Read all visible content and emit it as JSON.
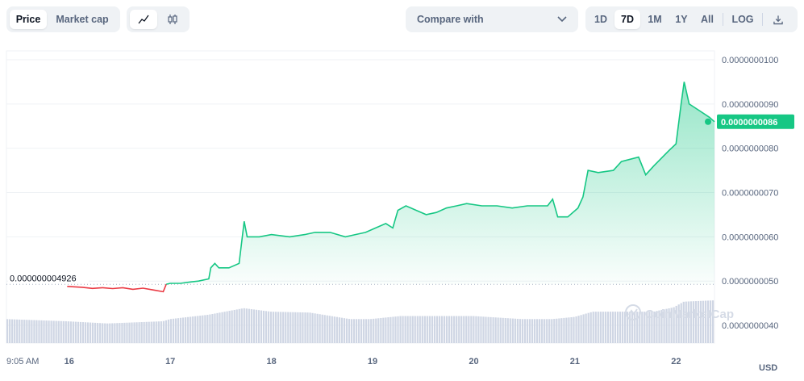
{
  "toolbar": {
    "metric_tabs": [
      {
        "label": "Price",
        "active": true
      },
      {
        "label": "Market cap",
        "active": false
      }
    ],
    "chart_type_icons": [
      {
        "icon": "line-chart-icon",
        "active": true
      },
      {
        "icon": "candlestick-icon",
        "active": false
      }
    ],
    "compare_label": "Compare with",
    "ranges": [
      {
        "label": "1D",
        "active": false
      },
      {
        "label": "7D",
        "active": true
      },
      {
        "label": "1M",
        "active": false
      },
      {
        "label": "1Y",
        "active": false
      },
      {
        "label": "All",
        "active": false
      }
    ],
    "log_label": "LOG",
    "download_icon": "download-icon"
  },
  "colors": {
    "up": "#16c784",
    "down": "#ea3943",
    "volume": "#cfd6e4",
    "grid": "#eff2f5"
  },
  "watermark": "CoinMarketCap",
  "currency_label": "USD",
  "chart_data": {
    "type": "line",
    "ylim": [
      3.6e-09,
      1.02e-08
    ],
    "y_ticks": [
      {
        "value": 4e-09,
        "label": "0.0000000040"
      },
      {
        "value": 5e-09,
        "label": "0.0000000050"
      },
      {
        "value": 6e-09,
        "label": "0.0000000060"
      },
      {
        "value": 7e-09,
        "label": "0.0000000070"
      },
      {
        "value": 8e-09,
        "label": "0.0000000080"
      },
      {
        "value": 9e-09,
        "label": "0.0000000090"
      },
      {
        "value": 1e-08,
        "label": "0.0000000100"
      }
    ],
    "x_ticks": [
      {
        "value": 0,
        "label": "9:05 AM"
      },
      {
        "value": 0.62,
        "label": "16"
      },
      {
        "value": 1.62,
        "label": "17"
      },
      {
        "value": 2.62,
        "label": "18"
      },
      {
        "value": 3.62,
        "label": "19"
      },
      {
        "value": 4.62,
        "label": "20"
      },
      {
        "value": 5.62,
        "label": "21"
      },
      {
        "value": 6.62,
        "label": "22"
      }
    ],
    "xlim": [
      0,
      7
    ],
    "baseline": {
      "value": 4.926e-09,
      "label": "0.000000004926"
    },
    "current": {
      "value": 8.6e-09,
      "label": "0.0000000086"
    },
    "price": [
      [
        0.6,
        4.88e-09
      ],
      [
        0.75,
        4.86e-09
      ],
      [
        0.85,
        4.835e-09
      ],
      [
        0.95,
        4.85e-09
      ],
      [
        1.05,
        4.83e-09
      ],
      [
        1.15,
        4.85e-09
      ],
      [
        1.25,
        4.815e-09
      ],
      [
        1.35,
        4.84e-09
      ],
      [
        1.45,
        4.8e-09
      ],
      [
        1.55,
        4.76e-09
      ],
      [
        1.58,
        4.93e-09
      ],
      [
        1.62,
        4.95e-09
      ],
      [
        1.72,
        4.95e-09
      ],
      [
        1.82,
        4.98e-09
      ],
      [
        1.9,
        5e-09
      ],
      [
        2.0,
        5.05e-09
      ],
      [
        2.02,
        5.3e-09
      ],
      [
        2.06,
        5.4e-09
      ],
      [
        2.1,
        5.3e-09
      ],
      [
        2.2,
        5.3e-09
      ],
      [
        2.3,
        5.4e-09
      ],
      [
        2.35,
        6.35e-09
      ],
      [
        2.38,
        6e-09
      ],
      [
        2.5,
        6e-09
      ],
      [
        2.62,
        6.05e-09
      ],
      [
        2.8,
        6e-09
      ],
      [
        2.95,
        6.05e-09
      ],
      [
        3.05,
        6.1e-09
      ],
      [
        3.2,
        6.1e-09
      ],
      [
        3.35,
        6e-09
      ],
      [
        3.45,
        6.05e-09
      ],
      [
        3.55,
        6.1e-09
      ],
      [
        3.65,
        6.2e-09
      ],
      [
        3.75,
        6.3e-09
      ],
      [
        3.82,
        6.2e-09
      ],
      [
        3.87,
        6.6e-09
      ],
      [
        3.95,
        6.7e-09
      ],
      [
        4.05,
        6.6e-09
      ],
      [
        4.15,
        6.5e-09
      ],
      [
        4.25,
        6.55e-09
      ],
      [
        4.35,
        6.65e-09
      ],
      [
        4.45,
        6.7e-09
      ],
      [
        4.55,
        6.75e-09
      ],
      [
        4.7,
        6.7e-09
      ],
      [
        4.85,
        6.7e-09
      ],
      [
        5.0,
        6.65e-09
      ],
      [
        5.15,
        6.7e-09
      ],
      [
        5.35,
        6.7e-09
      ],
      [
        5.4,
        6.85e-09
      ],
      [
        5.45,
        6.45e-09
      ],
      [
        5.55,
        6.45e-09
      ],
      [
        5.65,
        6.65e-09
      ],
      [
        5.7,
        6.9e-09
      ],
      [
        5.75,
        7.5e-09
      ],
      [
        5.85,
        7.45e-09
      ],
      [
        6.0,
        7.5e-09
      ],
      [
        6.08,
        7.7e-09
      ],
      [
        6.25,
        7.8e-09
      ],
      [
        6.32,
        7.4e-09
      ],
      [
        6.4,
        7.6e-09
      ],
      [
        6.55,
        7.95e-09
      ],
      [
        6.62,
        8.1e-09
      ],
      [
        6.67,
        9e-09
      ],
      [
        6.7,
        9.5e-09
      ],
      [
        6.75,
        9e-09
      ],
      [
        6.85,
        8.85e-09
      ],
      [
        6.95,
        8.7e-09
      ],
      [
        7.0,
        8.6e-09
      ]
    ],
    "volume_relative": [
      [
        0.0,
        0.55
      ],
      [
        0.6,
        0.5
      ],
      [
        1.0,
        0.45
      ],
      [
        1.55,
        0.5
      ],
      [
        1.62,
        0.55
      ],
      [
        2.0,
        0.65
      ],
      [
        2.35,
        0.8
      ],
      [
        2.62,
        0.72
      ],
      [
        3.0,
        0.7
      ],
      [
        3.4,
        0.55
      ],
      [
        3.6,
        0.55
      ],
      [
        3.9,
        0.62
      ],
      [
        4.4,
        0.62
      ],
      [
        4.62,
        0.62
      ],
      [
        5.1,
        0.55
      ],
      [
        5.4,
        0.55
      ],
      [
        5.62,
        0.6
      ],
      [
        5.8,
        0.72
      ],
      [
        6.4,
        0.72
      ],
      [
        6.6,
        0.82
      ],
      [
        6.7,
        0.95
      ],
      [
        7.0,
        0.98
      ]
    ]
  }
}
